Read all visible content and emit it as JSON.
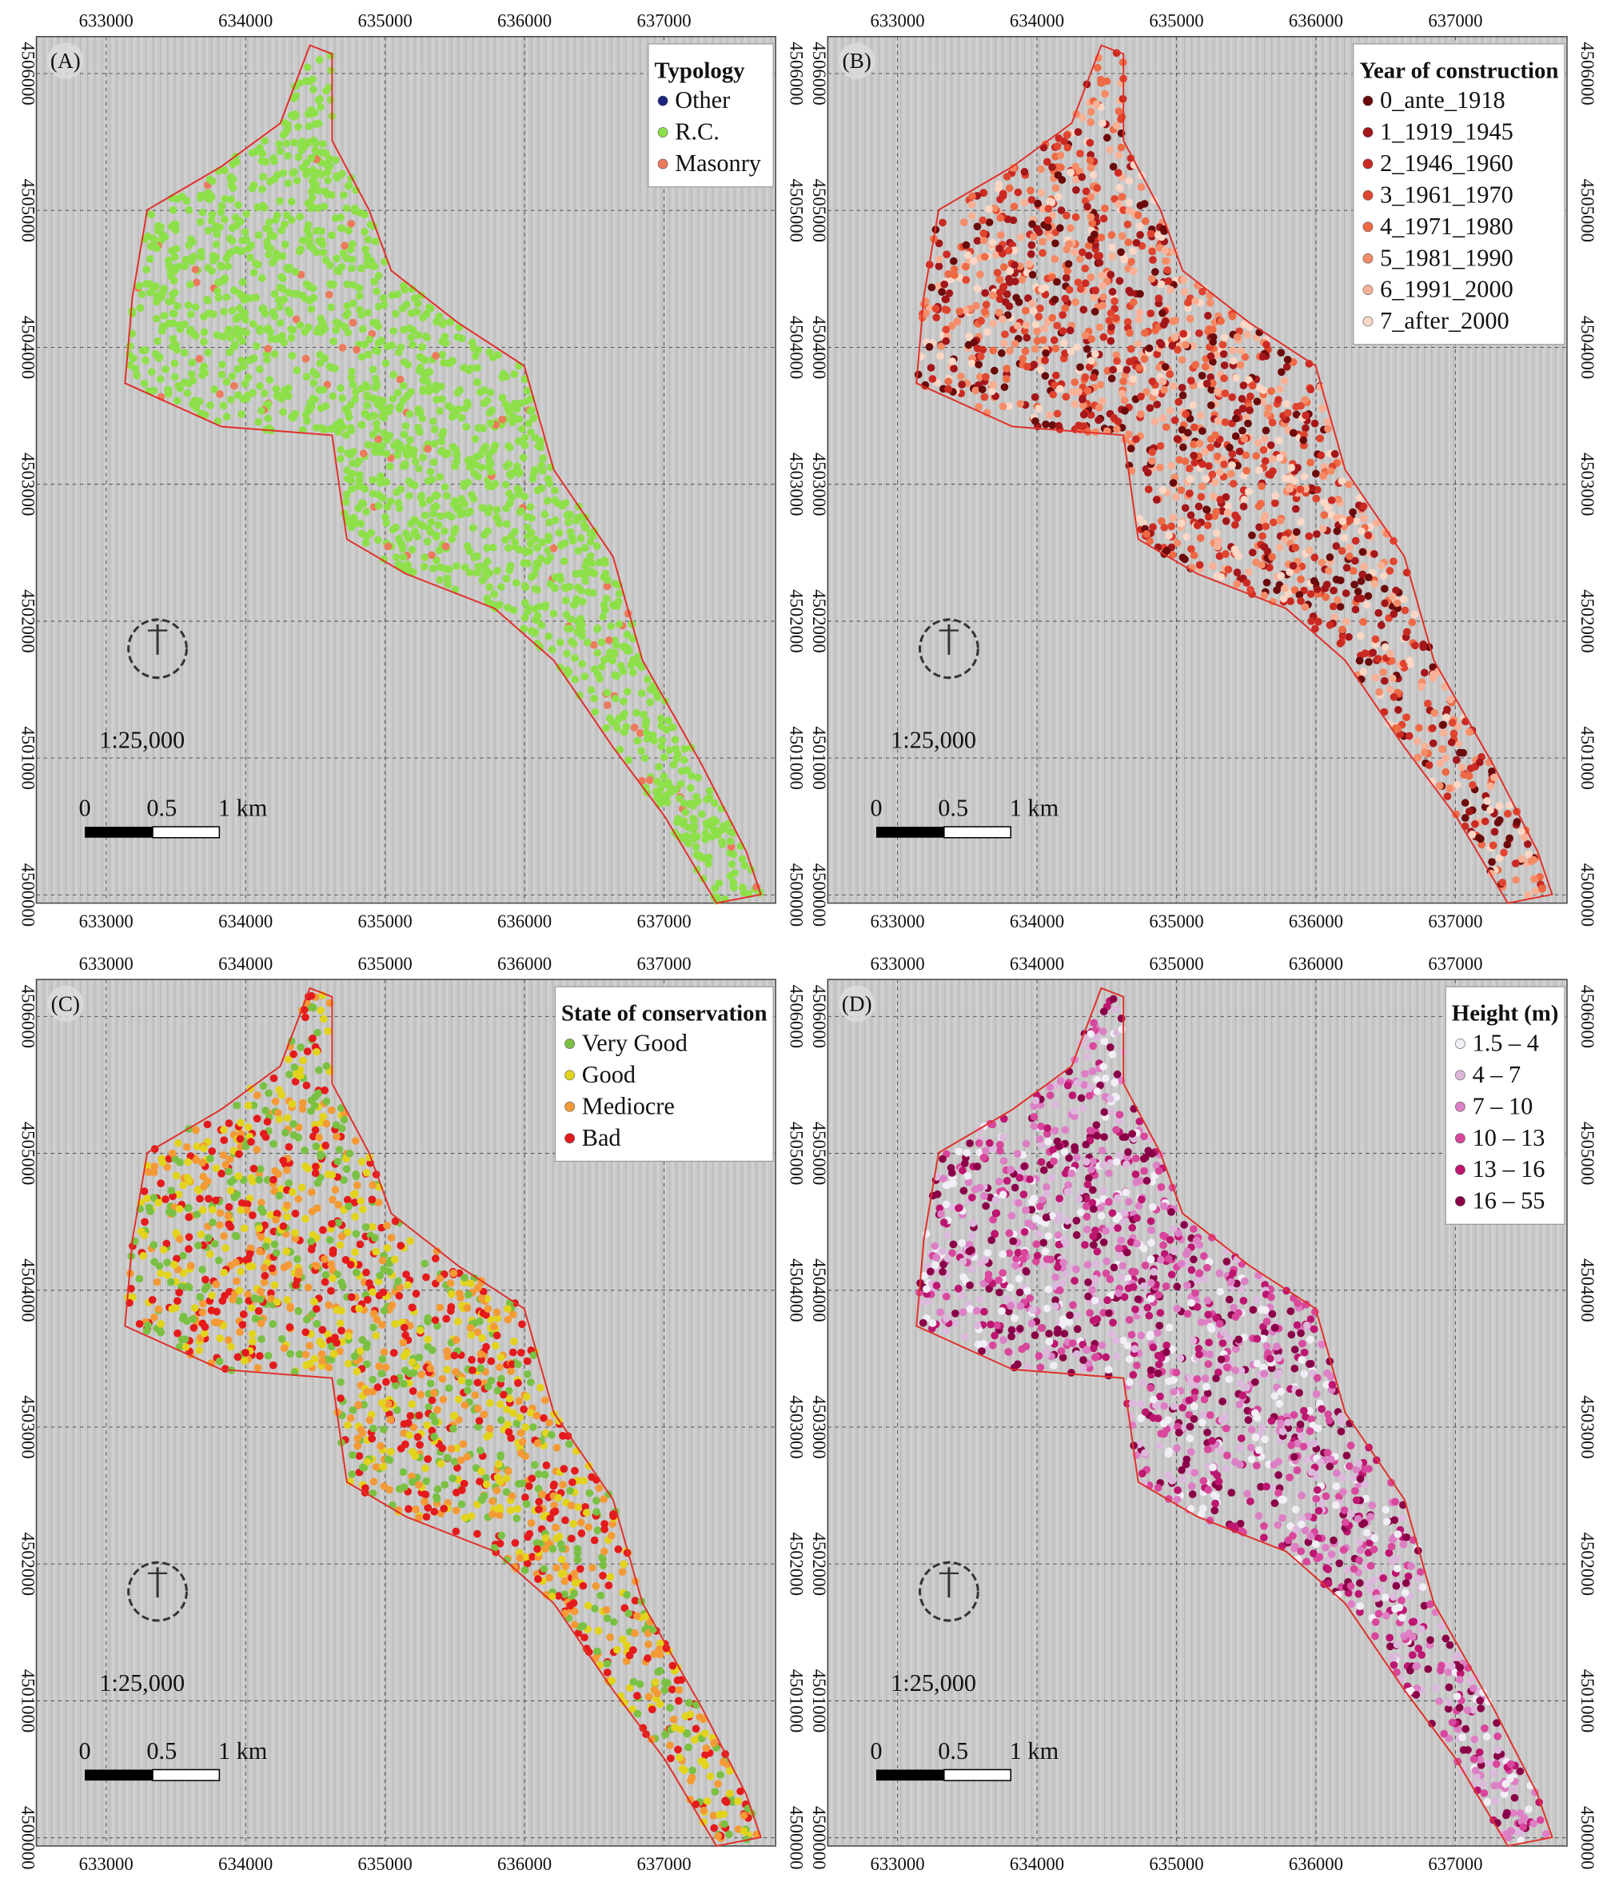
{
  "xlim": [
    632500,
    637800
  ],
  "ylim": [
    4499940,
    4506270
  ],
  "x_ticks": [
    633000,
    634000,
    635000,
    636000,
    637000
  ],
  "y_ticks": [
    4500000,
    4501000,
    4502000,
    4503000,
    4504000,
    4505000,
    4506000
  ],
  "scale_text": "1:25,000",
  "scale_bar_labels": [
    "0",
    "0.5",
    "1 km"
  ],
  "panels": [
    {
      "label": "(A)",
      "legend": {
        "title": "Typology",
        "items": [
          {
            "label": "Other",
            "color": "#1a237e"
          },
          {
            "label": "R.C.",
            "color": "#8ee04a"
          },
          {
            "label": "Masonry",
            "color": "#ec7a5c"
          }
        ]
      }
    },
    {
      "label": "(B)",
      "legend": {
        "title": "Year of construction",
        "items": [
          {
            "label": "0_ante_1918",
            "color": "#6b0a0a"
          },
          {
            "label": "1_1919_1945",
            "color": "#a3161a"
          },
          {
            "label": "2_1946_1960",
            "color": "#cb2a22"
          },
          {
            "label": "3_1961_1970",
            "color": "#e0452f"
          },
          {
            "label": "4_1971_1980",
            "color": "#ee6a45"
          },
          {
            "label": "5_1981_1990",
            "color": "#f48c68"
          },
          {
            "label": "6_1991_2000",
            "color": "#f8b196"
          },
          {
            "label": "7_after_2000",
            "color": "#fbd7c6"
          }
        ]
      }
    },
    {
      "label": "(C)",
      "legend": {
        "title": "State of conservation",
        "items": [
          {
            "label": "Very Good",
            "color": "#7ac143"
          },
          {
            "label": "Good",
            "color": "#e2d31c"
          },
          {
            "label": "Mediocre",
            "color": "#f39a36"
          },
          {
            "label": "Bad",
            "color": "#e41a1c"
          }
        ]
      }
    },
    {
      "label": "(D)",
      "legend": {
        "title": "Height (m)",
        "items": [
          {
            "label": "1.5 – 4",
            "color": "#f1eef6"
          },
          {
            "label": "4 – 7",
            "color": "#dcb9dc"
          },
          {
            "label": "7 – 10",
            "color": "#dd7fc4"
          },
          {
            "label": "10 – 13",
            "color": "#d8479c"
          },
          {
            "label": "13 – 16",
            "color": "#bd1670"
          },
          {
            "label": "16 – 55",
            "color": "#8a0048"
          }
        ]
      }
    }
  ]
}
